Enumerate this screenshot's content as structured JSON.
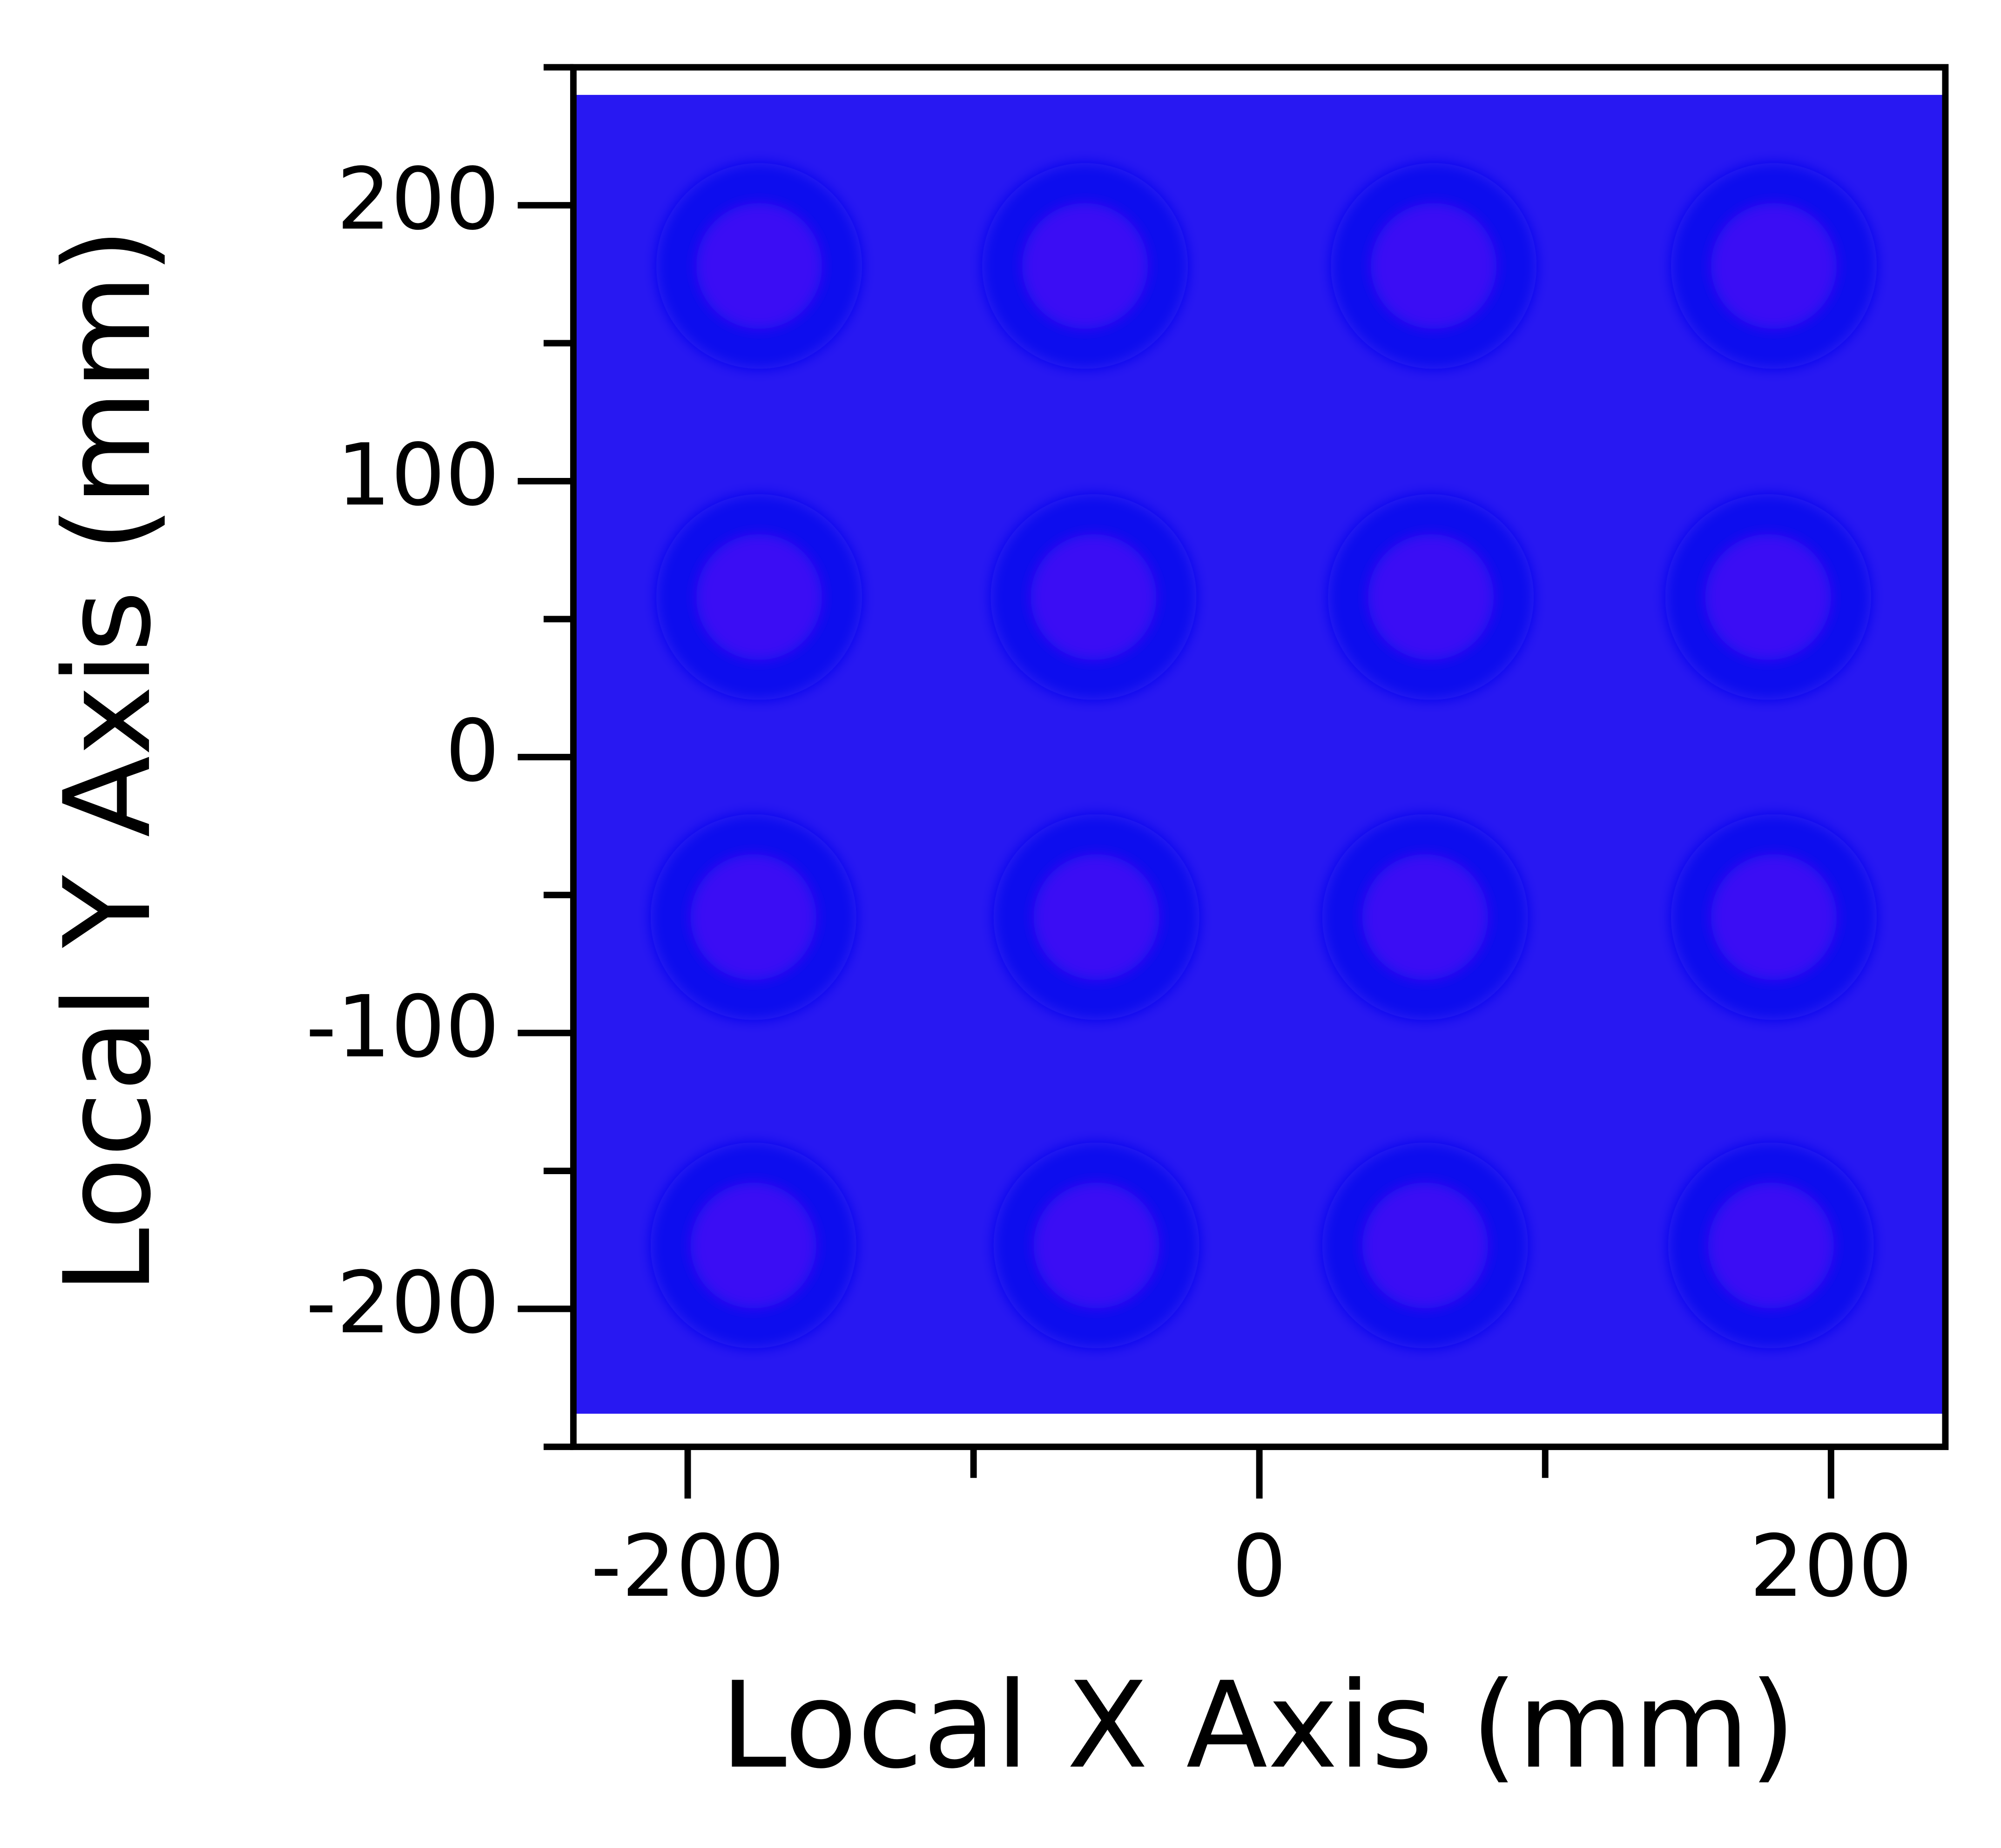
{
  "chart_data": {
    "type": "spot-map",
    "x_label": "Local X Axis (mm)",
    "y_label": "Local Y Axis (mm)",
    "xlim": [
      -240,
      240
    ],
    "ylim": [
      -250,
      250
    ],
    "xticks": [
      -200,
      0,
      200
    ],
    "xminor_ticks": [
      -100,
      100
    ],
    "yticks": [
      -200,
      -100,
      0,
      100,
      200
    ],
    "yminor_ticks": [
      -150,
      -50,
      50,
      150
    ],
    "image_extent": {
      "x": [
        -240,
        240
      ],
      "y": [
        -238,
        240
      ]
    },
    "colors": {
      "background": "#2818f2",
      "ring": "#0a10ee",
      "core": "#3a0cf4"
    },
    "spots": {
      "x": [
        -175,
        -61,
        61,
        180,
        -175,
        -58,
        60,
        178,
        -177,
        -57,
        58,
        180,
        -177,
        -57,
        58,
        179
      ],
      "y": [
        178,
        178,
        178,
        178,
        58,
        58,
        58,
        58,
        -58,
        -58,
        -58,
        -58,
        -177,
        -177,
        -177,
        -177
      ]
    }
  }
}
